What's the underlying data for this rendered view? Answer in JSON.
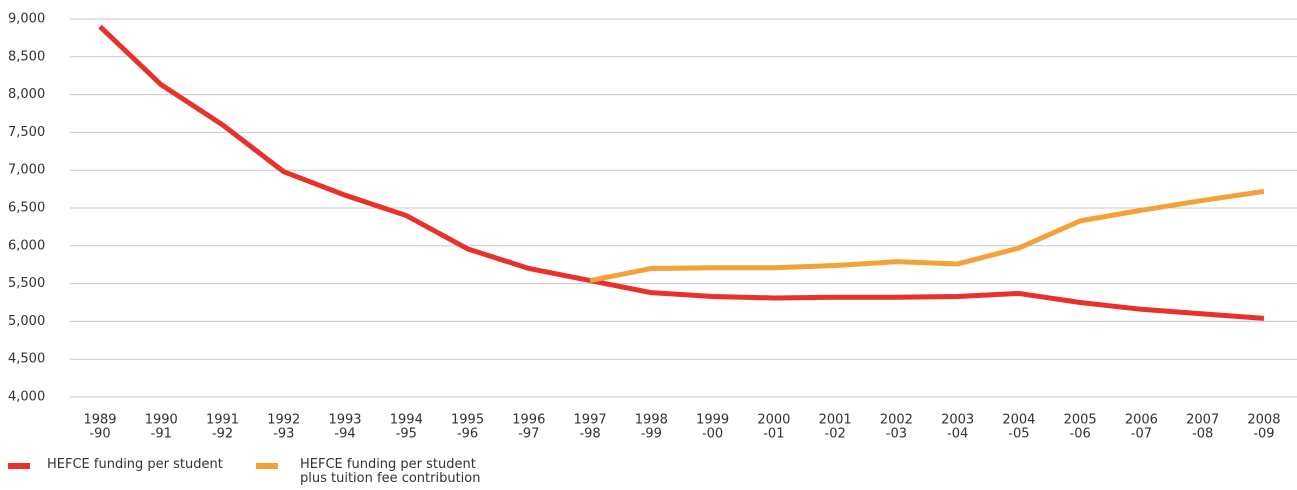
{
  "chart_data": {
    "type": "line",
    "categories": [
      [
        "1989",
        "-90"
      ],
      [
        "1990",
        "-91"
      ],
      [
        "1991",
        "-92"
      ],
      [
        "1992",
        "-93"
      ],
      [
        "1993",
        "-94"
      ],
      [
        "1994",
        "-95"
      ],
      [
        "1995",
        "-96"
      ],
      [
        "1996",
        "-97"
      ],
      [
        "1997",
        "-98"
      ],
      [
        "1998",
        "-99"
      ],
      [
        "1999",
        "-00"
      ],
      [
        "2000",
        "-01"
      ],
      [
        "2001",
        "-02"
      ],
      [
        "2002",
        "-03"
      ],
      [
        "2003",
        "-04"
      ],
      [
        "2004",
        "-05"
      ],
      [
        "2005",
        "-06"
      ],
      [
        "2006",
        "-07"
      ],
      [
        "2007",
        "-08"
      ],
      [
        "2008",
        "-09"
      ]
    ],
    "series": [
      {
        "name": "HEFCE funding per student",
        "color": "#e8312a",
        "values": [
          8900,
          8130,
          7600,
          6980,
          6670,
          6400,
          5960,
          5700,
          5540,
          5380,
          5330,
          5310,
          5320,
          5320,
          5330,
          5370,
          5250,
          5160,
          5100,
          5040
        ]
      },
      {
        "name": "HEFCE funding per student plus tuition fee contribution",
        "color": "#f5a13a",
        "values": [
          null,
          null,
          null,
          null,
          null,
          null,
          null,
          null,
          5540,
          5700,
          5710,
          5710,
          5740,
          5790,
          5760,
          5970,
          6330,
          6470,
          6600,
          6720
        ]
      }
    ],
    "ylim": [
      4000,
      9000
    ],
    "yticks": [
      {
        "value": 4000,
        "label": "4,000"
      },
      {
        "value": 4500,
        "label": "4,500"
      },
      {
        "value": 5000,
        "label": "5,000"
      },
      {
        "value": 5500,
        "label": "5,500"
      },
      {
        "value": 6000,
        "label": "6,000"
      },
      {
        "value": 6500,
        "label": "6,500"
      },
      {
        "value": 7000,
        "label": "7,000"
      },
      {
        "value": 7500,
        "label": "7,500"
      },
      {
        "value": 8000,
        "label": "8,000"
      },
      {
        "value": 8500,
        "label": "8,500"
      },
      {
        "value": 9000,
        "label": "9,000"
      }
    ],
    "grid": true
  }
}
